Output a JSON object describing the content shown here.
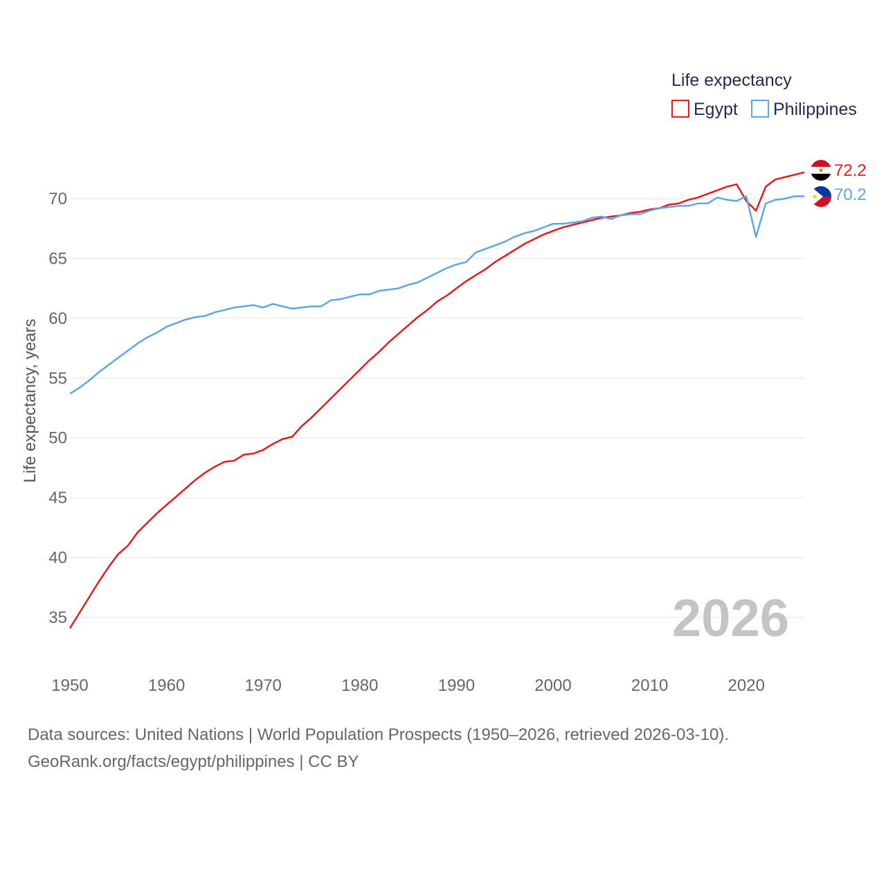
{
  "chart_data": {
    "type": "line",
    "title": "",
    "xlabel": "",
    "ylabel": "Life expectancy, years",
    "xlim": [
      1950,
      2026
    ],
    "ylim": [
      32.5,
      73.6
    ],
    "x_ticks": [
      1950,
      1960,
      1970,
      1980,
      1990,
      2000,
      2010,
      2020
    ],
    "y_ticks": [
      35,
      40,
      45,
      50,
      55,
      60,
      65,
      70
    ],
    "grid": true,
    "legend_title": "Life expectancy",
    "legend_position": "top-right",
    "watermark_year": "2026",
    "x": [
      1950,
      1951,
      1952,
      1953,
      1954,
      1955,
      1956,
      1957,
      1958,
      1959,
      1960,
      1961,
      1962,
      1963,
      1964,
      1965,
      1966,
      1967,
      1968,
      1969,
      1970,
      1971,
      1972,
      1973,
      1974,
      1975,
      1976,
      1977,
      1978,
      1979,
      1980,
      1981,
      1982,
      1983,
      1984,
      1985,
      1986,
      1987,
      1988,
      1989,
      1990,
      1991,
      1992,
      1993,
      1994,
      1995,
      1996,
      1997,
      1998,
      1999,
      2000,
      2001,
      2002,
      2003,
      2004,
      2005,
      2006,
      2007,
      2008,
      2009,
      2010,
      2011,
      2012,
      2013,
      2014,
      2015,
      2016,
      2017,
      2018,
      2019,
      2020,
      2021,
      2022,
      2023,
      2024,
      2025,
      2026
    ],
    "series": [
      {
        "name": "Egypt",
        "color": "#e41a1c",
        "end_label": "72.2",
        "flag": "egypt-flag",
        "values": [
          34.1,
          35.4,
          36.7,
          38.0,
          39.2,
          40.3,
          41.0,
          42.1,
          42.9,
          43.7,
          44.4,
          45.1,
          45.8,
          46.5,
          47.1,
          47.6,
          48.0,
          48.1,
          48.6,
          48.7,
          49.0,
          49.5,
          49.9,
          50.1,
          51.0,
          51.7,
          52.5,
          53.3,
          54.1,
          54.9,
          55.7,
          56.5,
          57.2,
          58.0,
          58.7,
          59.4,
          60.1,
          60.7,
          61.4,
          61.9,
          62.5,
          63.1,
          63.6,
          64.1,
          64.7,
          65.2,
          65.7,
          66.2,
          66.6,
          67.0,
          67.3,
          67.6,
          67.8,
          68.0,
          68.2,
          68.4,
          68.5,
          68.6,
          68.8,
          68.9,
          69.1,
          69.2,
          69.5,
          69.6,
          69.9,
          70.1,
          70.4,
          70.7,
          71.0,
          71.2,
          69.8,
          69.0,
          71.0,
          71.6,
          71.8,
          72.0,
          72.2
        ]
      },
      {
        "name": "Philippines",
        "color": "#5ea6e4",
        "end_label": "70.2",
        "flag": "philippines-flag",
        "values": [
          53.7,
          54.2,
          54.8,
          55.5,
          56.1,
          56.7,
          57.3,
          57.9,
          58.4,
          58.8,
          59.3,
          59.6,
          59.9,
          60.1,
          60.2,
          60.5,
          60.7,
          60.9,
          61.0,
          61.1,
          60.9,
          61.2,
          61.0,
          60.8,
          60.9,
          61.0,
          61.0,
          61.5,
          61.6,
          61.8,
          62.0,
          62.0,
          62.3,
          62.4,
          62.5,
          62.8,
          63.0,
          63.4,
          63.8,
          64.2,
          64.5,
          64.7,
          65.5,
          65.8,
          66.1,
          66.4,
          66.8,
          67.1,
          67.3,
          67.6,
          67.9,
          67.9,
          68.0,
          68.1,
          68.4,
          68.5,
          68.3,
          68.6,
          68.7,
          68.7,
          69.0,
          69.2,
          69.3,
          69.4,
          69.4,
          69.6,
          69.6,
          70.1,
          69.9,
          69.8,
          70.2,
          66.8,
          69.6,
          69.9,
          70.0,
          70.2,
          70.2
        ]
      }
    ]
  },
  "footer": {
    "line1": "Data sources: United Nations | World Population Prospects (1950–2026, retrieved 2026-03-10).",
    "line2": "GeoRank.org/facts/egypt/philippines | CC BY"
  }
}
